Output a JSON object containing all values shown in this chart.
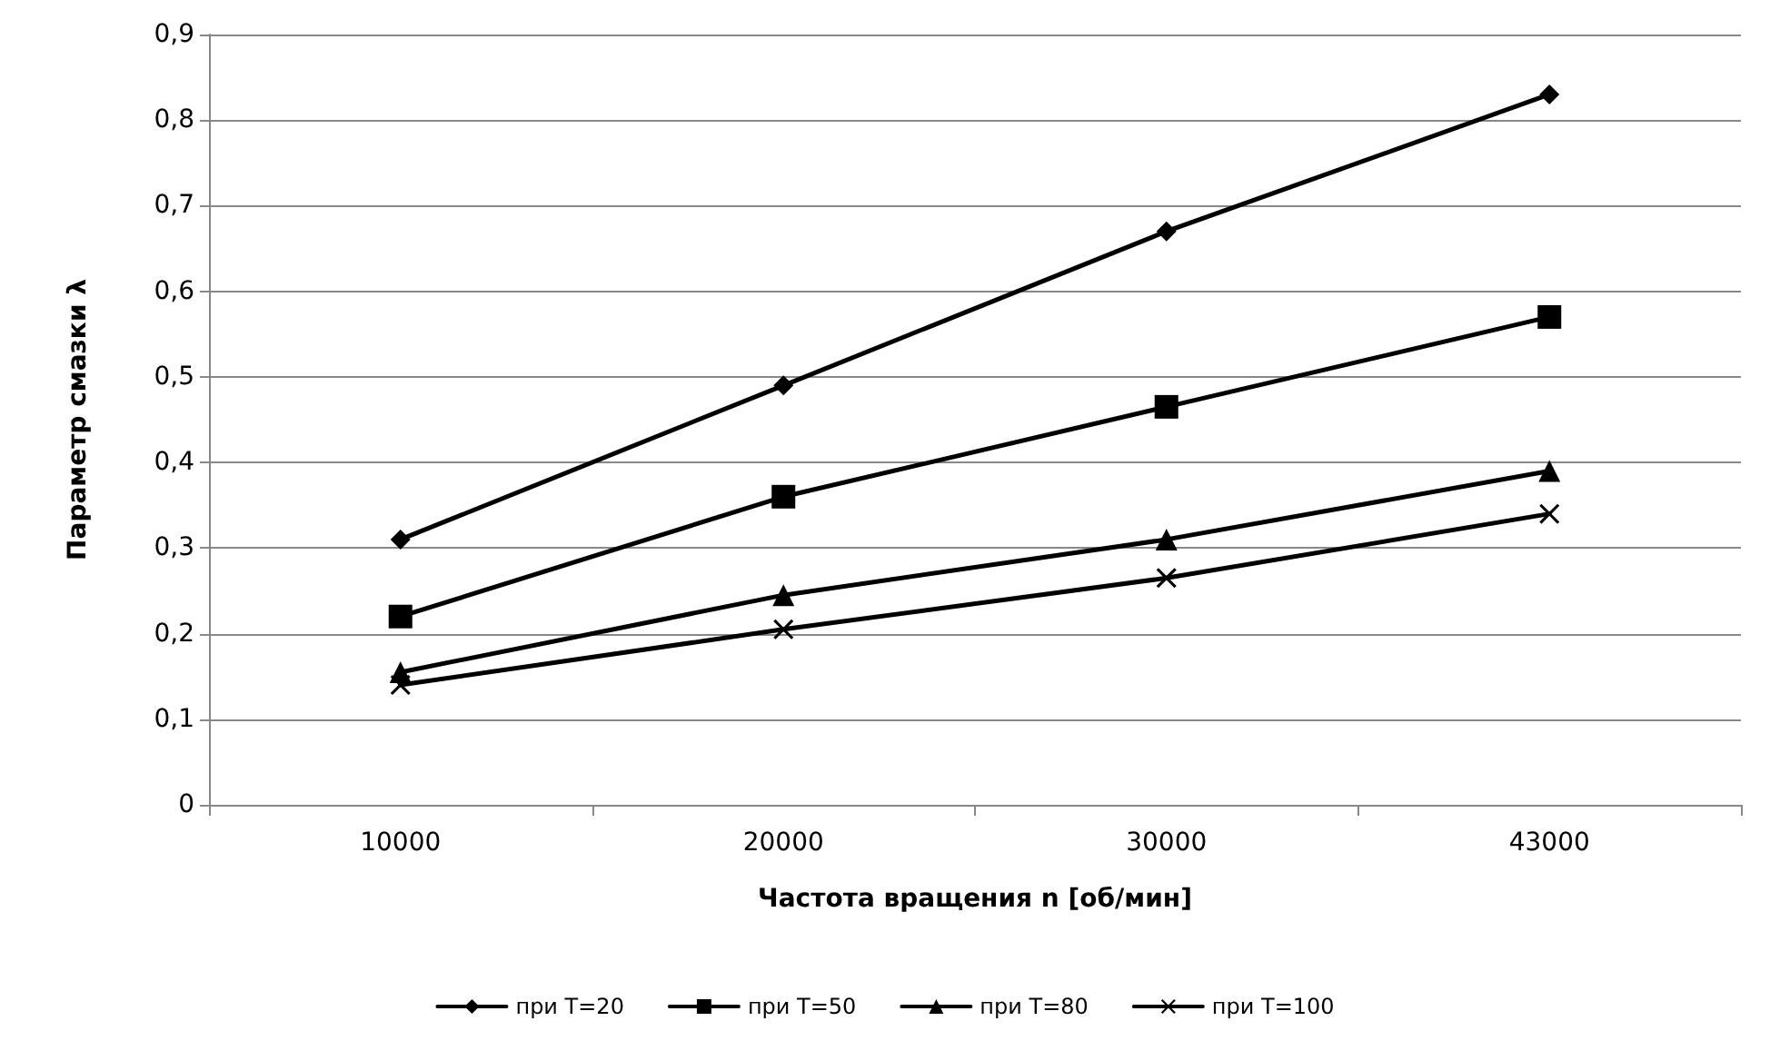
{
  "chart_data": {
    "type": "line",
    "xlabel": "Частота вращения n [об/мин]",
    "ylabel": "Параметр смазки λ",
    "categories": [
      "10000",
      "20000",
      "30000",
      "43000"
    ],
    "series": [
      {
        "name": "при T=20",
        "color": "#000000",
        "marker": "diamond",
        "values": [
          0.31,
          0.49,
          0.67,
          0.83
        ]
      },
      {
        "name": "при T=50",
        "color": "#000000",
        "marker": "square",
        "values": [
          0.22,
          0.36,
          0.465,
          0.57
        ]
      },
      {
        "name": "при T=80",
        "color": "#000000",
        "marker": "triangle",
        "values": [
          0.155,
          0.245,
          0.31,
          0.39
        ]
      },
      {
        "name": "при T=100",
        "color": "#000000",
        "marker": "cross",
        "values": [
          0.14,
          0.205,
          0.265,
          0.34
        ]
      }
    ],
    "ylim": [
      0,
      0.9
    ],
    "yticks": [
      0,
      {
        "value": 0.1,
        "label": "0,1"
      },
      {
        "value": 0.2,
        "label": "0,2"
      },
      {
        "value": 0.3,
        "label": "0,3"
      },
      {
        "value": 0.4,
        "label": "0,4"
      },
      {
        "value": 0.5,
        "label": "0,5"
      },
      {
        "value": 0.6,
        "label": "0,6"
      },
      {
        "value": 0.7,
        "label": "0,7"
      },
      {
        "value": 0.8,
        "label": "0,8"
      },
      {
        "value": 0.9,
        "label": "0,9"
      }
    ],
    "grid": "y",
    "legend": "bottom",
    "line_style": "solid"
  }
}
